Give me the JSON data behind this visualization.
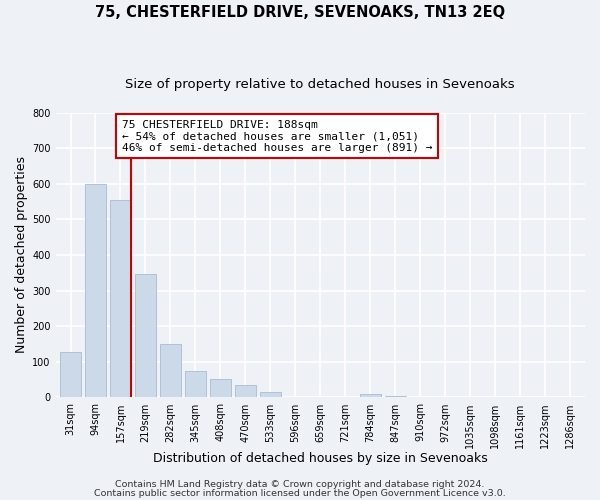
{
  "title": "75, CHESTERFIELD DRIVE, SEVENOAKS, TN13 2EQ",
  "subtitle": "Size of property relative to detached houses in Sevenoaks",
  "xlabel": "Distribution of detached houses by size in Sevenoaks",
  "ylabel": "Number of detached properties",
  "bar_labels": [
    "31sqm",
    "94sqm",
    "157sqm",
    "219sqm",
    "282sqm",
    "345sqm",
    "408sqm",
    "470sqm",
    "533sqm",
    "596sqm",
    "659sqm",
    "721sqm",
    "784sqm",
    "847sqm",
    "910sqm",
    "972sqm",
    "1035sqm",
    "1098sqm",
    "1161sqm",
    "1223sqm",
    "1286sqm"
  ],
  "bar_values": [
    128,
    600,
    553,
    347,
    149,
    75,
    51,
    34,
    14,
    0,
    0,
    0,
    10,
    5,
    0,
    0,
    0,
    0,
    0,
    0,
    0
  ],
  "bar_color": "#ccd9e8",
  "bar_edge_color": "#aabbd0",
  "ylim": [
    0,
    800
  ],
  "yticks": [
    0,
    100,
    200,
    300,
    400,
    500,
    600,
    700,
    800
  ],
  "vline_color": "#cc0000",
  "annotation_line1": "75 CHESTERFIELD DRIVE: 188sqm",
  "annotation_line2": "← 54% of detached houses are smaller (1,051)",
  "annotation_line3": "46% of semi-detached houses are larger (891) →",
  "background_color": "#eef2f7",
  "grid_color": "#ffffff",
  "footer_line1": "Contains HM Land Registry data © Crown copyright and database right 2024.",
  "footer_line2": "Contains public sector information licensed under the Open Government Licence v3.0.",
  "title_fontsize": 10.5,
  "subtitle_fontsize": 9.5,
  "axis_label_fontsize": 9,
  "tick_fontsize": 7,
  "annotation_fontsize": 8,
  "footer_fontsize": 6.8
}
